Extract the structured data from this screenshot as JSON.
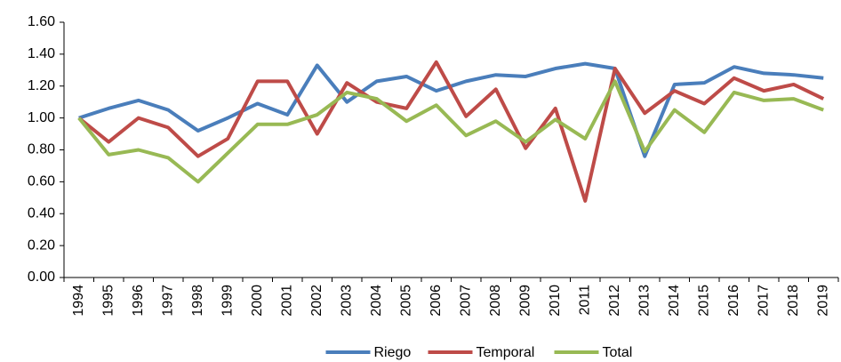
{
  "chart_data": {
    "type": "line",
    "categories": [
      "1994",
      "1995",
      "1996",
      "1997",
      "1998",
      "1999",
      "2000",
      "2001",
      "2002",
      "2003",
      "2004",
      "2005",
      "2006",
      "2007",
      "2008",
      "2009",
      "2010",
      "2011",
      "2012",
      "2013",
      "2014",
      "2015",
      "2016",
      "2017",
      "2018",
      "2019"
    ],
    "series": [
      {
        "name": "Riego",
        "color": "#4a7ebb",
        "values": [
          1.0,
          1.06,
          1.11,
          1.05,
          0.92,
          1.0,
          1.09,
          1.02,
          1.33,
          1.1,
          1.23,
          1.26,
          1.17,
          1.23,
          1.27,
          1.26,
          1.31,
          1.34,
          1.31,
          0.76,
          1.21,
          1.22,
          1.32,
          1.28,
          1.27,
          1.25
        ]
      },
      {
        "name": "Temporal",
        "color": "#be4b48",
        "values": [
          1.0,
          0.85,
          1.0,
          0.94,
          0.76,
          0.87,
          1.23,
          1.23,
          0.9,
          1.22,
          1.1,
          1.06,
          1.35,
          1.01,
          1.18,
          0.81,
          1.06,
          0.48,
          1.31,
          1.03,
          1.17,
          1.09,
          1.25,
          1.17,
          1.21,
          1.12
        ]
      },
      {
        "name": "Total",
        "color": "#98b954",
        "values": [
          1.0,
          0.77,
          0.8,
          0.75,
          0.6,
          0.78,
          0.96,
          0.96,
          1.02,
          1.16,
          1.12,
          0.98,
          1.08,
          0.89,
          0.98,
          0.85,
          0.99,
          0.87,
          1.23,
          0.79,
          1.05,
          0.91,
          1.16,
          1.11,
          1.12,
          1.05
        ]
      }
    ],
    "ylim": [
      0,
      1.6
    ],
    "yticks": [
      {
        "value": 0,
        "label": "0.00"
      },
      {
        "value": 0.2,
        "label": "0.20"
      },
      {
        "value": 0.4,
        "label": "0.40"
      },
      {
        "value": 0.6,
        "label": "0.60"
      },
      {
        "value": 0.8,
        "label": "0.80"
      },
      {
        "value": 1.0,
        "label": "1.00"
      },
      {
        "value": 1.2,
        "label": "1.20"
      },
      {
        "value": 1.4,
        "label": "1.40"
      },
      {
        "value": 1.6,
        "label": "1.60"
      }
    ],
    "grid": false,
    "legend": "bottom"
  }
}
